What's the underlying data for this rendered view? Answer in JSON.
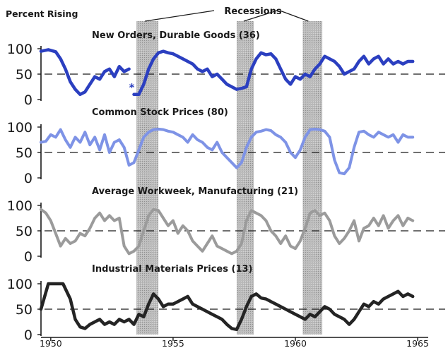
{
  "chart_data": {
    "type": "line",
    "figure": {
      "ylabel": "Percent Rising",
      "annotation": "Recessions",
      "recessions": [
        [
          1953.5,
          1954.4
        ],
        [
          1957.6,
          1958.3
        ],
        [
          1960.3,
          1961.1
        ]
      ],
      "xlim": [
        1949.6,
        1965.2
      ],
      "x_ticks": [
        1950,
        1955,
        1960,
        1965
      ],
      "x_tick_labels": [
        "1950",
        "1955",
        "1960",
        "1965"
      ]
    },
    "panels": [
      {
        "title": "New Orders, Durable Goods (36)",
        "color": "#2b3fc0",
        "width": 4.5,
        "ylim": [
          0,
          100
        ],
        "yticks": [
          0,
          50,
          100
        ],
        "ytick_labels": [
          "0",
          "50",
          "100"
        ],
        "reference": 50,
        "footnote_mark": "*",
        "footnote_x": 1953.2,
        "footnote_y": 25,
        "series": [
          {
            "x": [
              1949.6,
              1949.9,
              1950.2,
              1950.4,
              1950.6,
              1950.8,
              1951.0,
              1951.2,
              1951.4,
              1951.6,
              1951.8,
              1952.0,
              1952.2,
              1952.4,
              1952.6,
              1952.8,
              1953.0,
              1953.2
            ],
            "y": [
              95,
              98,
              94,
              80,
              60,
              35,
              20,
              10,
              15,
              30,
              45,
              40,
              55,
              60,
              45,
              65,
              55,
              60
            ]
          },
          {
            "x": [
              1953.4,
              1953.6,
              1953.8,
              1954.0,
              1954.2,
              1954.4,
              1954.6,
              1954.8,
              1955.0,
              1955.2,
              1955.4,
              1955.6,
              1955.8,
              1956.0,
              1956.2,
              1956.4,
              1956.6,
              1956.8,
              1957.0,
              1957.2,
              1957.4,
              1957.6,
              1957.8,
              1958.0,
              1958.2,
              1958.4,
              1958.6,
              1958.8,
              1959.0,
              1959.2,
              1959.4,
              1959.6,
              1959.8,
              1960.0,
              1960.2,
              1960.4,
              1960.6,
              1960.8,
              1961.0,
              1961.2,
              1961.4,
              1961.6,
              1961.8,
              1962.0,
              1962.2,
              1962.4,
              1962.6,
              1962.8,
              1963.0,
              1963.2,
              1963.4,
              1963.6,
              1963.8,
              1964.0,
              1964.2,
              1964.4,
              1964.6,
              1964.8
            ],
            "y": [
              10,
              10,
              30,
              60,
              80,
              92,
              95,
              92,
              90,
              85,
              80,
              75,
              70,
              60,
              55,
              60,
              45,
              50,
              40,
              30,
              25,
              20,
              22,
              25,
              60,
              80,
              92,
              88,
              90,
              80,
              60,
              40,
              30,
              45,
              40,
              50,
              45,
              60,
              70,
              85,
              80,
              75,
              65,
              50,
              55,
              60,
              75,
              85,
              70,
              80,
              85,
              70,
              80,
              70,
              75,
              70,
              75,
              75
            ]
          }
        ]
      },
      {
        "title": "Common Stock Prices (80)",
        "color": "#7e93e6",
        "width": 4,
        "ylim": [
          0,
          100
        ],
        "yticks": [
          0,
          50,
          100
        ],
        "ytick_labels": [
          "0",
          "50",
          "100"
        ],
        "reference": 50,
        "series": [
          {
            "x": [
              1949.6,
              1949.8,
              1950.0,
              1950.2,
              1950.4,
              1950.6,
              1950.8,
              1951.0,
              1951.2,
              1951.4,
              1951.6,
              1951.8,
              1952.0,
              1952.2,
              1952.4,
              1952.6,
              1952.8,
              1953.0,
              1953.2,
              1953.4,
              1953.6,
              1953.8,
              1954.0,
              1954.2,
              1954.4,
              1954.6,
              1954.8,
              1955.0,
              1955.2,
              1955.4,
              1955.6,
              1955.8,
              1956.0,
              1956.2,
              1956.4,
              1956.6,
              1956.8,
              1957.0,
              1957.2,
              1957.4,
              1957.6,
              1957.8,
              1958.0,
              1958.2,
              1958.4,
              1958.6,
              1958.8,
              1959.0,
              1959.2,
              1959.4,
              1959.6,
              1959.8,
              1960.0,
              1960.2,
              1960.4,
              1960.6,
              1960.8,
              1961.0,
              1961.2,
              1961.4,
              1961.6,
              1961.8,
              1962.0,
              1962.2,
              1962.4,
              1962.6,
              1962.8,
              1963.0,
              1963.2,
              1963.4,
              1963.6,
              1963.8,
              1964.0,
              1964.2,
              1964.4,
              1964.6,
              1964.8
            ],
            "y": [
              70,
              72,
              85,
              80,
              95,
              75,
              60,
              80,
              70,
              90,
              65,
              80,
              55,
              85,
              50,
              70,
              75,
              60,
              25,
              30,
              55,
              80,
              90,
              95,
              96,
              95,
              92,
              90,
              85,
              80,
              70,
              85,
              75,
              70,
              60,
              55,
              70,
              50,
              40,
              30,
              20,
              30,
              60,
              80,
              90,
              92,
              95,
              93,
              85,
              80,
              70,
              50,
              40,
              55,
              80,
              95,
              96,
              95,
              92,
              80,
              35,
              10,
              8,
              20,
              60,
              90,
              92,
              85,
              80,
              90,
              85,
              80,
              85,
              70,
              85,
              80,
              80
            ]
          }
        ]
      },
      {
        "title": "Average Workweek, Manufacturing (21)",
        "color": "#9b9b9b",
        "width": 4,
        "ylim": [
          0,
          100
        ],
        "yticks": [
          0,
          50,
          100
        ],
        "ytick_labels": [
          "0",
          "50",
          "100"
        ],
        "reference": 50,
        "series": [
          {
            "x": [
              1949.6,
              1949.8,
              1950.0,
              1950.2,
              1950.4,
              1950.6,
              1950.8,
              1951.0,
              1951.2,
              1951.4,
              1951.6,
              1951.8,
              1952.0,
              1952.2,
              1952.4,
              1952.6,
              1952.8,
              1953.0,
              1953.2,
              1953.4,
              1953.6,
              1953.8,
              1954.0,
              1954.2,
              1954.4,
              1954.6,
              1954.8,
              1955.0,
              1955.2,
              1955.4,
              1955.6,
              1955.8,
              1956.0,
              1956.2,
              1956.4,
              1956.6,
              1956.8,
              1957.0,
              1957.2,
              1957.4,
              1957.6,
              1957.8,
              1958.0,
              1958.2,
              1958.4,
              1958.6,
              1958.8,
              1959.0,
              1959.2,
              1959.4,
              1959.6,
              1959.8,
              1960.0,
              1960.2,
              1960.4,
              1960.6,
              1960.8,
              1961.0,
              1961.2,
              1961.4,
              1961.6,
              1961.8,
              1962.0,
              1962.2,
              1962.4,
              1962.6,
              1962.8,
              1963.0,
              1963.2,
              1963.4,
              1963.6,
              1963.8,
              1964.0,
              1964.2,
              1964.4,
              1964.6,
              1964.8
            ],
            "y": [
              92,
              85,
              70,
              45,
              20,
              35,
              25,
              30,
              45,
              40,
              55,
              75,
              85,
              70,
              80,
              70,
              75,
              20,
              5,
              10,
              20,
              50,
              80,
              92,
              90,
              75,
              60,
              70,
              45,
              60,
              50,
              30,
              20,
              10,
              25,
              40,
              20,
              15,
              10,
              5,
              10,
              25,
              70,
              90,
              85,
              80,
              70,
              50,
              40,
              25,
              40,
              20,
              15,
              30,
              55,
              85,
              90,
              80,
              85,
              70,
              40,
              25,
              35,
              50,
              70,
              30,
              55,
              60,
              75,
              60,
              80,
              55,
              70,
              80,
              60,
              75,
              70
            ]
          }
        ]
      },
      {
        "title": "Industrial Materials Prices (13)",
        "color": "#242424",
        "width": 4.5,
        "ylim": [
          0,
          100
        ],
        "yticks": [
          0,
          50,
          100
        ],
        "ytick_labels": [
          "0",
          "50",
          "100"
        ],
        "reference": 50,
        "series": [
          {
            "x": [
              1949.6,
              1949.9,
              1950.2,
              1950.5,
              1950.8,
              1951.0,
              1951.2,
              1951.4,
              1951.6,
              1951.8,
              1952.0,
              1952.2,
              1952.4,
              1952.6,
              1952.8,
              1953.0,
              1953.2,
              1953.4,
              1953.6,
              1953.8,
              1954.0,
              1954.2,
              1954.4,
              1954.6,
              1954.8,
              1955.0,
              1955.2,
              1955.4,
              1955.6,
              1955.8,
              1956.0,
              1956.2,
              1956.4,
              1956.6,
              1956.8,
              1957.0,
              1957.2,
              1957.4,
              1957.6,
              1957.8,
              1958.0,
              1958.2,
              1958.4,
              1958.6,
              1958.8,
              1959.0,
              1959.2,
              1959.4,
              1959.6,
              1959.8,
              1960.0,
              1960.2,
              1960.4,
              1960.6,
              1960.8,
              1961.0,
              1961.2,
              1961.4,
              1961.6,
              1961.8,
              1962.0,
              1962.2,
              1962.4,
              1962.6,
              1962.8,
              1963.0,
              1963.2,
              1963.4,
              1963.6,
              1963.8,
              1964.0,
              1964.2,
              1964.4,
              1964.6,
              1964.8
            ],
            "y": [
              50,
              100,
              100,
              100,
              70,
              30,
              15,
              12,
              20,
              25,
              30,
              20,
              25,
              20,
              30,
              25,
              30,
              20,
              40,
              35,
              60,
              80,
              70,
              55,
              60,
              60,
              65,
              70,
              75,
              60,
              55,
              50,
              45,
              40,
              35,
              30,
              20,
              12,
              10,
              30,
              55,
              75,
              80,
              72,
              70,
              65,
              60,
              55,
              50,
              45,
              40,
              35,
              30,
              40,
              35,
              45,
              55,
              50,
              40,
              35,
              30,
              20,
              30,
              45,
              60,
              55,
              65,
              60,
              70,
              75,
              80,
              85,
              75,
              80,
              75
            ]
          }
        ]
      }
    ]
  }
}
